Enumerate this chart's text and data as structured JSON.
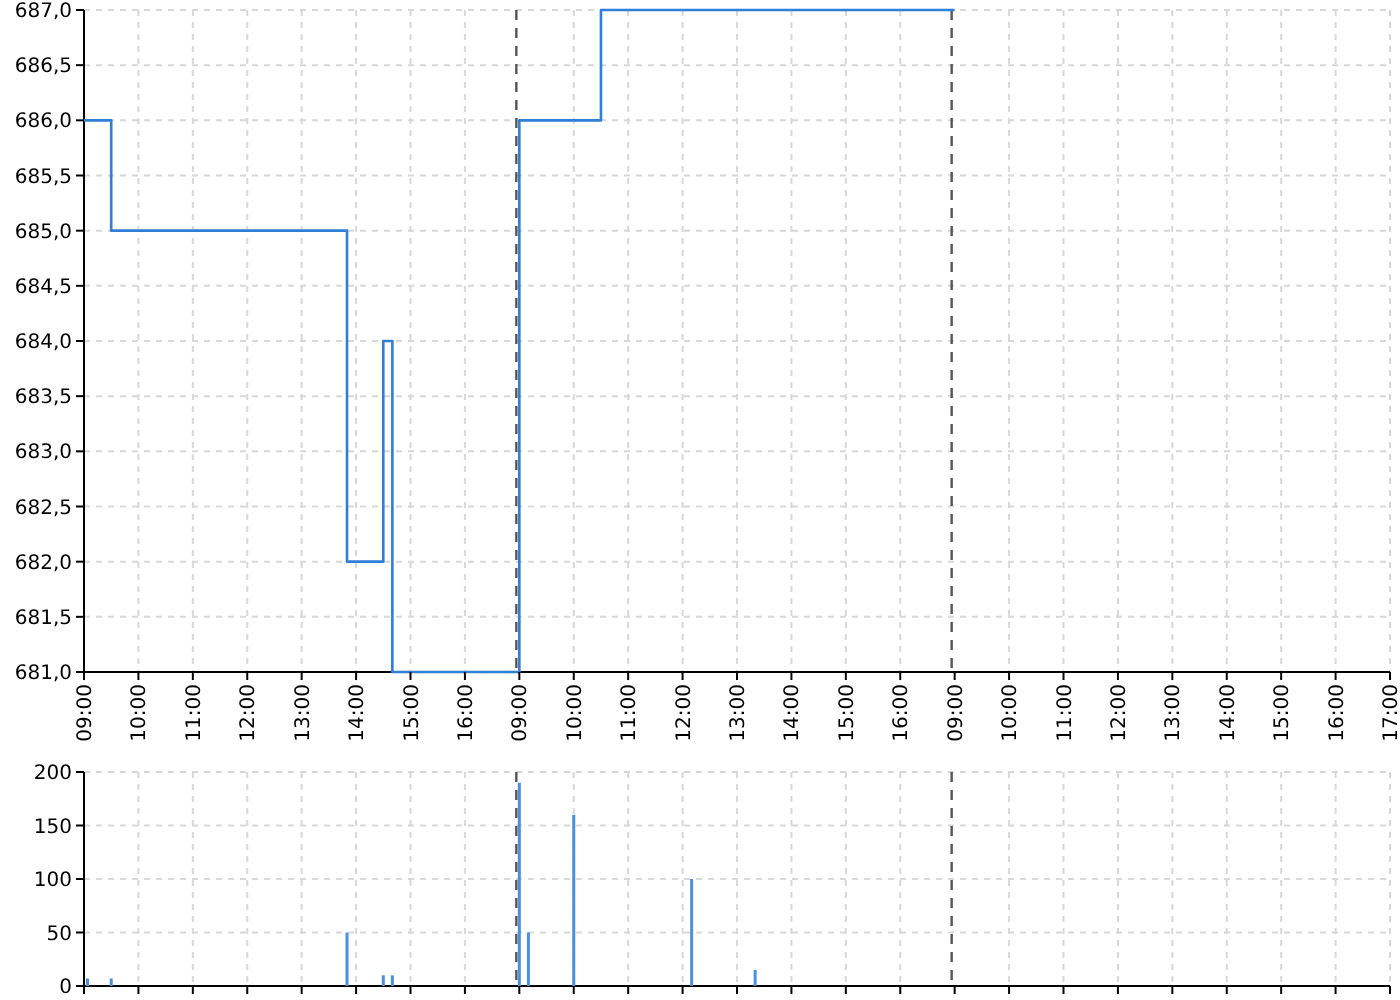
{
  "chart_data": [
    {
      "type": "step",
      "categories": [
        "09:00",
        null,
        null,
        null,
        null,
        null,
        "10:00",
        null,
        null,
        null,
        null,
        null,
        "11:00",
        null,
        null,
        null,
        null,
        null,
        "12:00",
        null,
        null,
        null,
        null,
        null,
        "13:00",
        null,
        null,
        null,
        null,
        null,
        "14:00",
        null,
        null,
        null,
        null,
        null,
        "15:00",
        null,
        null,
        null,
        null,
        null,
        "16:00",
        null,
        null,
        null,
        null,
        null,
        "09:00",
        null,
        null,
        null,
        null,
        null,
        "10:00",
        null,
        null,
        null,
        null,
        null,
        "11:00",
        null,
        null,
        null,
        null,
        null,
        "12:00",
        null,
        null,
        null,
        null,
        null,
        "13:00",
        null,
        null,
        null,
        null,
        null,
        "14:00",
        null,
        null,
        null,
        null,
        null,
        "15:00",
        null,
        null,
        null,
        null,
        null,
        "16:00",
        null,
        null,
        null,
        null,
        null,
        "09:00",
        null,
        null,
        null,
        null,
        null,
        "10:00",
        null,
        null,
        null,
        null,
        null,
        "11:00",
        null,
        null,
        null,
        null,
        null,
        "12:00",
        null,
        null,
        null,
        null,
        null,
        "13:00",
        null,
        null,
        null,
        null,
        null,
        "14:00",
        null,
        null,
        null,
        null,
        null,
        "15:00",
        null,
        null,
        null,
        null,
        null,
        "16:00",
        null,
        null,
        null,
        null,
        null,
        "17:00"
      ],
      "series": [
        {
          "color": "#2f7ed8",
          "values": [
            686,
            686,
            686,
            685,
            685,
            685,
            685,
            685,
            685,
            685,
            685,
            685,
            685,
            685,
            685,
            685,
            685,
            685,
            685,
            685,
            685,
            685,
            685,
            685,
            685,
            685,
            685,
            685,
            685,
            682,
            682,
            682,
            682,
            684,
            681,
            681,
            681,
            681,
            681,
            681,
            681,
            681,
            681,
            681,
            681,
            681,
            681,
            681,
            686,
            686,
            686,
            686,
            686,
            686,
            686,
            686,
            686,
            687,
            687,
            687,
            687,
            687,
            687,
            687,
            687,
            687,
            687,
            687,
            687,
            687,
            687,
            687,
            687,
            687,
            687,
            687,
            687,
            687,
            687,
            687,
            687,
            687,
            687,
            687,
            687,
            687,
            687,
            687,
            687,
            687,
            687,
            687,
            687,
            687,
            687,
            687,
            687,
            null,
            null,
            null,
            null,
            null,
            null,
            null,
            null,
            null,
            null,
            null,
            null,
            null,
            null,
            null,
            null,
            null,
            null,
            null,
            null,
            null,
            null,
            null,
            null,
            null,
            null,
            null,
            null,
            null,
            null,
            null,
            null,
            null,
            null,
            null,
            null,
            null,
            null,
            null,
            null,
            null,
            null,
            null,
            null,
            null,
            null,
            null,
            null
          ]
        }
      ],
      "ylim": [
        681,
        687
      ],
      "yticks": [
        {
          "value": 681,
          "label": "681,0"
        },
        {
          "value": 681.5,
          "label": "681,5"
        },
        {
          "value": 682,
          "label": "682,0"
        },
        {
          "value": 682.5,
          "label": "682,5"
        },
        {
          "value": 683,
          "label": "683,0"
        },
        {
          "value": 683.5,
          "label": "683,5"
        },
        {
          "value": 684,
          "label": "684,0"
        },
        {
          "value": 684.5,
          "label": "684,5"
        },
        {
          "value": 685,
          "label": "685,0"
        },
        {
          "value": 685.5,
          "label": "685,5"
        },
        {
          "value": 686,
          "label": "686,0"
        },
        {
          "value": 686.5,
          "label": "686,5"
        },
        {
          "value": 687,
          "label": "687,0"
        }
      ],
      "grid": true
    },
    {
      "type": "bar",
      "categories": [
        null,
        null,
        null,
        null,
        null,
        null,
        null,
        null,
        null,
        null,
        null,
        null,
        null,
        null,
        null,
        null,
        null,
        null,
        null,
        null,
        null,
        null,
        null,
        null,
        null,
        null,
        null,
        null,
        null,
        null,
        null,
        null,
        null,
        null,
        null,
        null,
        null,
        null,
        null,
        null,
        null,
        null,
        null,
        null,
        null,
        null,
        null,
        null,
        null,
        null,
        null,
        null,
        null,
        null,
        null,
        null,
        null,
        null,
        null,
        null,
        null,
        null,
        null,
        null,
        null,
        null,
        null,
        null,
        null,
        null,
        null,
        null,
        null,
        null,
        null,
        null,
        null,
        null,
        null,
        null,
        null,
        null,
        null,
        null,
        null,
        null,
        null,
        null,
        null,
        null,
        null,
        null,
        null,
        null,
        null,
        null,
        null,
        null,
        null,
        null,
        null,
        null,
        null,
        null,
        null,
        null,
        null,
        null,
        null,
        null,
        null,
        null,
        null,
        null,
        null,
        null,
        null,
        null,
        null,
        null,
        null,
        null,
        null,
        null,
        null,
        null,
        null,
        null,
        null,
        null,
        null,
        null,
        null,
        null,
        null,
        null,
        null,
        null,
        null,
        null,
        null,
        null,
        null,
        null,
        null
      ],
      "series": [
        {
          "color": "#4a90e2",
          "values": [
            7,
            null,
            null,
            7,
            null,
            null,
            null,
            null,
            null,
            null,
            null,
            null,
            null,
            null,
            null,
            null,
            null,
            null,
            null,
            null,
            null,
            null,
            null,
            null,
            null,
            null,
            null,
            null,
            null,
            50,
            null,
            null,
            null,
            10,
            10,
            null,
            null,
            null,
            null,
            null,
            null,
            null,
            null,
            null,
            null,
            null,
            null,
            null,
            190,
            50,
            null,
            null,
            null,
            null,
            160,
            null,
            null,
            null,
            null,
            null,
            null,
            null,
            null,
            null,
            null,
            null,
            null,
            100,
            null,
            null,
            null,
            null,
            null,
            null,
            15,
            null,
            null,
            null,
            null,
            null,
            null,
            null,
            null,
            null,
            null,
            null,
            null,
            null,
            null,
            null,
            null,
            null,
            null,
            null,
            null,
            null,
            null,
            null,
            null,
            null,
            null,
            null,
            null,
            null,
            null,
            null,
            null,
            null,
            null,
            null,
            null,
            null,
            null,
            null,
            null,
            null,
            null,
            null,
            null,
            null,
            null,
            null,
            null,
            null,
            null,
            null,
            null,
            null,
            null,
            null,
            null,
            null,
            null,
            null,
            null,
            null,
            null,
            null,
            null,
            null,
            null,
            null,
            null,
            null,
            null
          ]
        }
      ],
      "ylim": [
        0,
        200
      ],
      "yticks": [
        0,
        50,
        100,
        150,
        200
      ],
      "grid": true,
      "tick_labels": "y"
    }
  ]
}
